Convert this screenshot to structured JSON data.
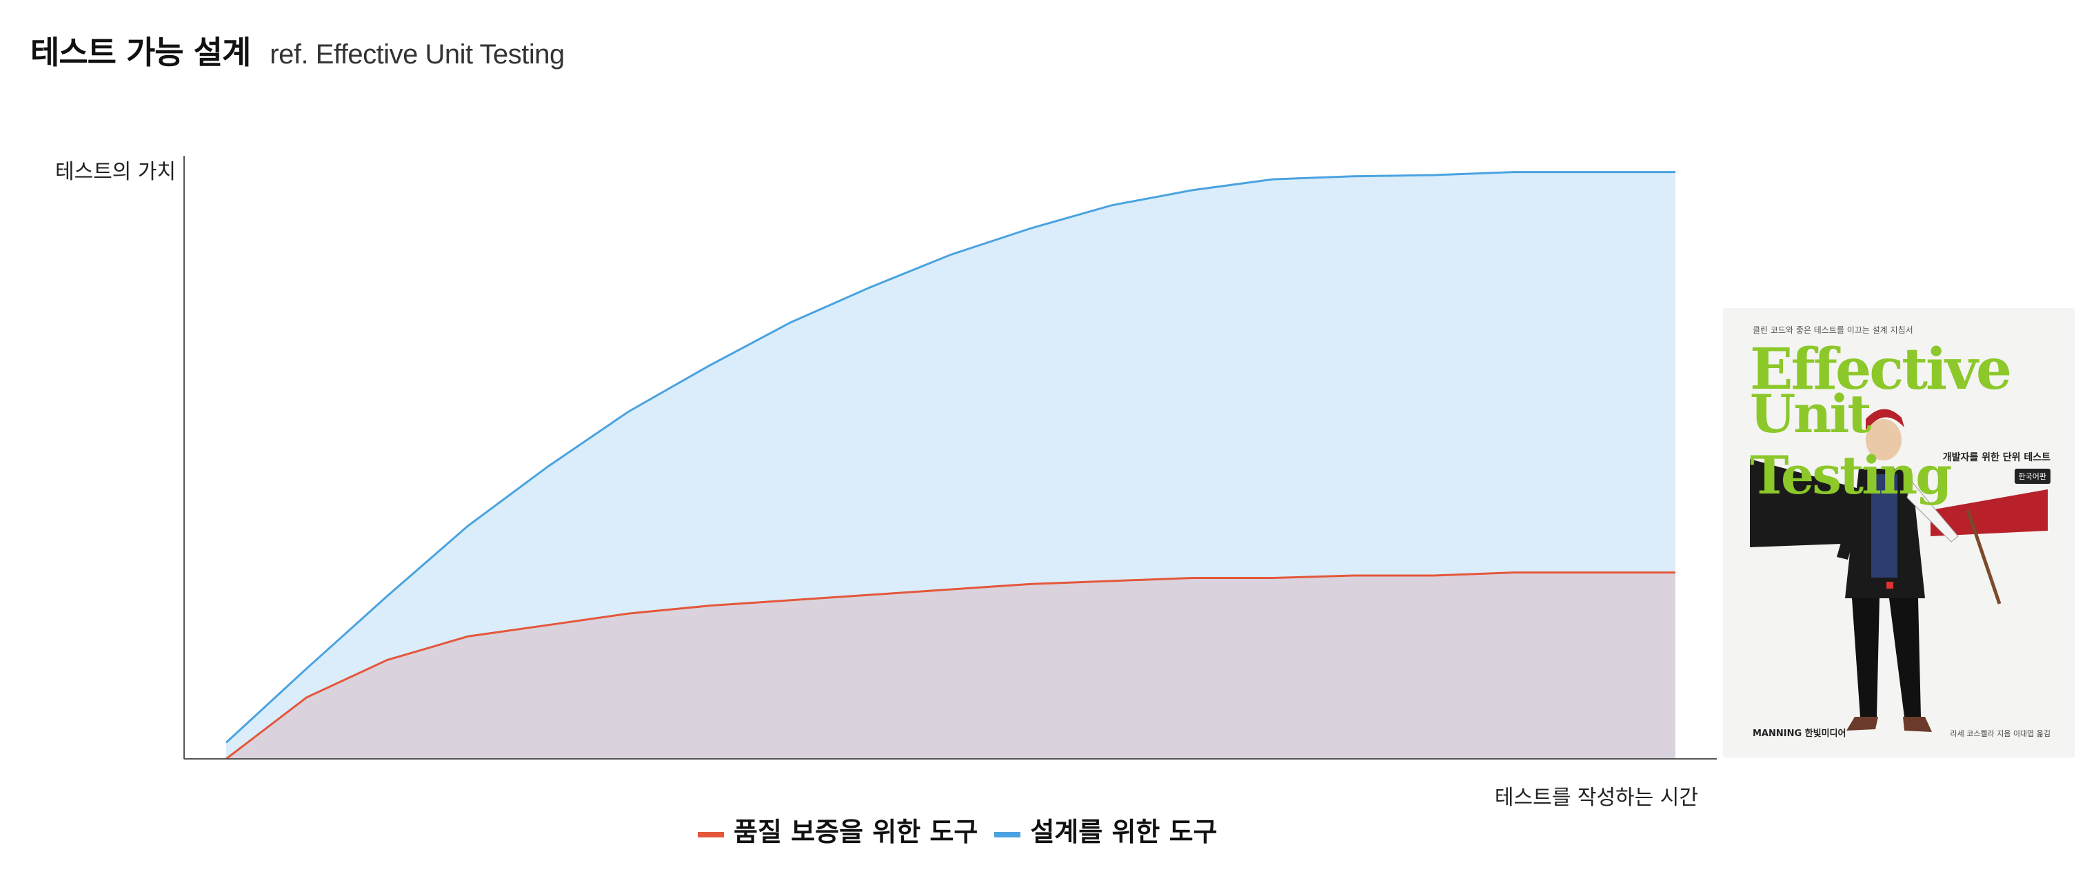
{
  "header": {
    "title": "테스트 가능 설계",
    "subtitle": "ref. Effective Unit Testing"
  },
  "colors": {
    "quality": "#e4573a",
    "design": "#4aa3e0",
    "design_fill": "#dbedfb",
    "quality_fill": "#dad3de"
  },
  "chart_data": {
    "type": "area",
    "title": "",
    "xlabel": "테스트를 작성하는 시간",
    "ylabel": "테스트의 가치",
    "xlim": [
      0,
      18
    ],
    "ylim": [
      0,
      100
    ],
    "x": [
      0,
      1,
      2,
      3,
      4,
      5,
      6,
      7,
      8,
      9,
      10,
      11,
      12,
      13,
      14,
      15,
      16,
      17,
      18
    ],
    "series": [
      {
        "name": "품질 보증을 위한 도구",
        "color": "#e4573a",
        "values": [
          0,
          10.2,
          16.4,
          20.3,
          22.2,
          24.1,
          25.4,
          26.3,
          27.2,
          28.1,
          29.0,
          29.5,
          30.0,
          30.0,
          30.4,
          30.4,
          30.9,
          30.9,
          30.9
        ]
      },
      {
        "name": "설계를 위한 도구",
        "color": "#4aa3e0",
        "values": [
          2.7,
          15.0,
          27.0,
          38.6,
          48.5,
          57.6,
          65.2,
          72.3,
          78.2,
          83.6,
          88.0,
          91.8,
          94.3,
          96.1,
          96.6,
          96.8,
          97.3,
          97.3,
          97.3
        ]
      }
    ],
    "legend": "bottom",
    "grid": false
  },
  "book": {
    "tagline": "클린 코드와 좋은 테스트를 이끄는 설계 지침서",
    "title_line1": "Effective",
    "title_line2": "Unit Testing",
    "subtitle": "개발자를 위한 단위 테스트",
    "edition": "한국어판",
    "publisher": "MANNING  한빛미디어",
    "authors": "라세 코스켈라 지음  이대엽 옮김"
  }
}
